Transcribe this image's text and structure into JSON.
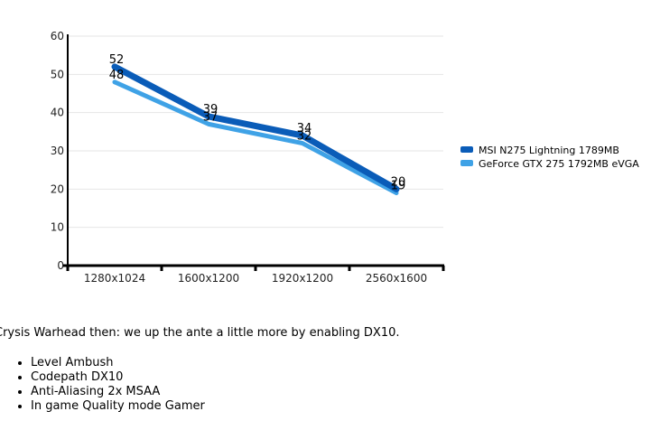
{
  "chart_data": {
    "type": "line",
    "categories": [
      "1280x1024",
      "1600x1200",
      "1920x1200",
      "2560x1600"
    ],
    "series": [
      {
        "name": "MSI N275 Lightning 1789MB",
        "values": [
          52,
          39,
          34,
          20
        ],
        "color": "#0a5cb8"
      },
      {
        "name": "GeForce GTX 275 1792MB eVGA",
        "values": [
          48,
          37,
          32,
          19
        ],
        "color": "#3fa2e6"
      }
    ],
    "ylim": [
      0,
      60
    ],
    "yticks": [
      0,
      10,
      20,
      30,
      40,
      50,
      60
    ],
    "grid": true,
    "legend": "right"
  },
  "article": {
    "intro": "Crysis Warhead then: we up the ante a little more by enabling DX10.",
    "settings": [
      "Level Ambush",
      "Codepath DX10",
      "Anti-Aliasing 2x MSAA",
      "In game Quality mode Gamer"
    ]
  }
}
